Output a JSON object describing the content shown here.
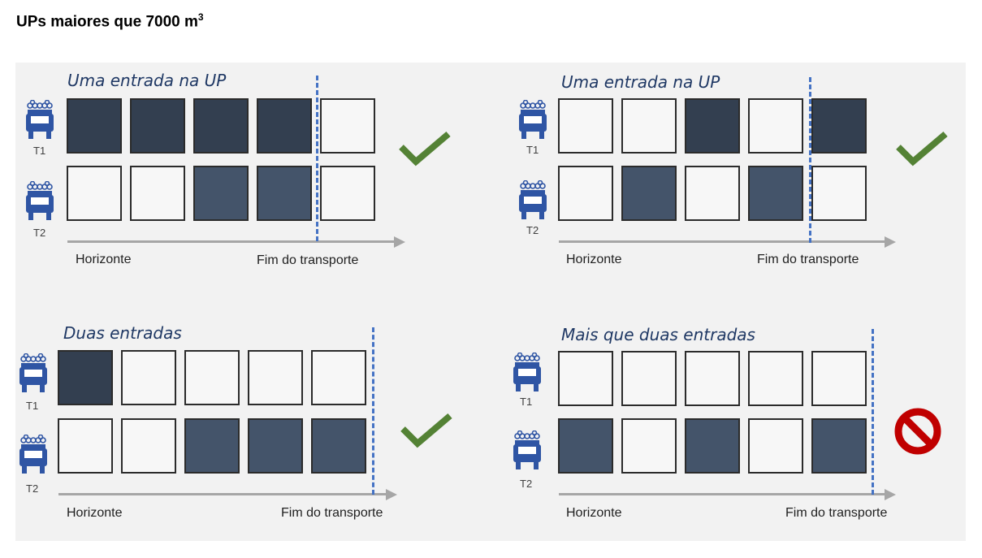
{
  "page_title": "UPs maiores que 7000 m",
  "page_title_sup": "3",
  "panels": [
    {
      "title": "Uma entrada na UP",
      "rows": [
        {
          "label": "T1",
          "cells": [
            "dark",
            "dark",
            "dark",
            "dark",
            "empty"
          ]
        },
        {
          "label": "T2",
          "cells": [
            "empty",
            "empty",
            "mid",
            "mid",
            "empty"
          ]
        }
      ],
      "axis_start": "Horizonte",
      "axis_end": "Fim do transporte",
      "status": "check-icon"
    },
    {
      "title": "Uma entrada na UP",
      "rows": [
        {
          "label": "T1",
          "cells": [
            "empty",
            "empty",
            "dark",
            "empty",
            "dark"
          ]
        },
        {
          "label": "T2",
          "cells": [
            "empty",
            "mid",
            "empty",
            "mid",
            "empty"
          ]
        }
      ],
      "axis_start": "Horizonte",
      "axis_end": "Fim do transporte",
      "status": "check-icon"
    },
    {
      "title": "Duas entradas",
      "rows": [
        {
          "label": "T1",
          "cells": [
            "dark",
            "empty",
            "empty",
            "empty",
            "empty"
          ]
        },
        {
          "label": "T2",
          "cells": [
            "empty",
            "empty",
            "mid",
            "mid",
            "mid"
          ]
        }
      ],
      "axis_start": "Horizonte",
      "axis_end": "Fim do transporte",
      "status": "check-icon"
    },
    {
      "title": "Mais que duas entradas",
      "rows": [
        {
          "label": "T1",
          "cells": [
            "empty",
            "empty",
            "empty",
            "empty",
            "empty"
          ]
        },
        {
          "label": "T2",
          "cells": [
            "mid",
            "empty",
            "mid",
            "empty",
            "mid"
          ]
        }
      ],
      "axis_start": "Horizonte",
      "axis_end": "Fim do transporte",
      "status": "prohibited-icon"
    }
  ],
  "colors": {
    "dark_cell": "#333f50",
    "mid_cell": "#44546a",
    "empty_cell": "#f7f7f7",
    "check": "#548235",
    "prohibited": "#c00000",
    "truck": "#2f55a4",
    "dashed_line": "#4472c4",
    "title_text": "#1f3864"
  }
}
